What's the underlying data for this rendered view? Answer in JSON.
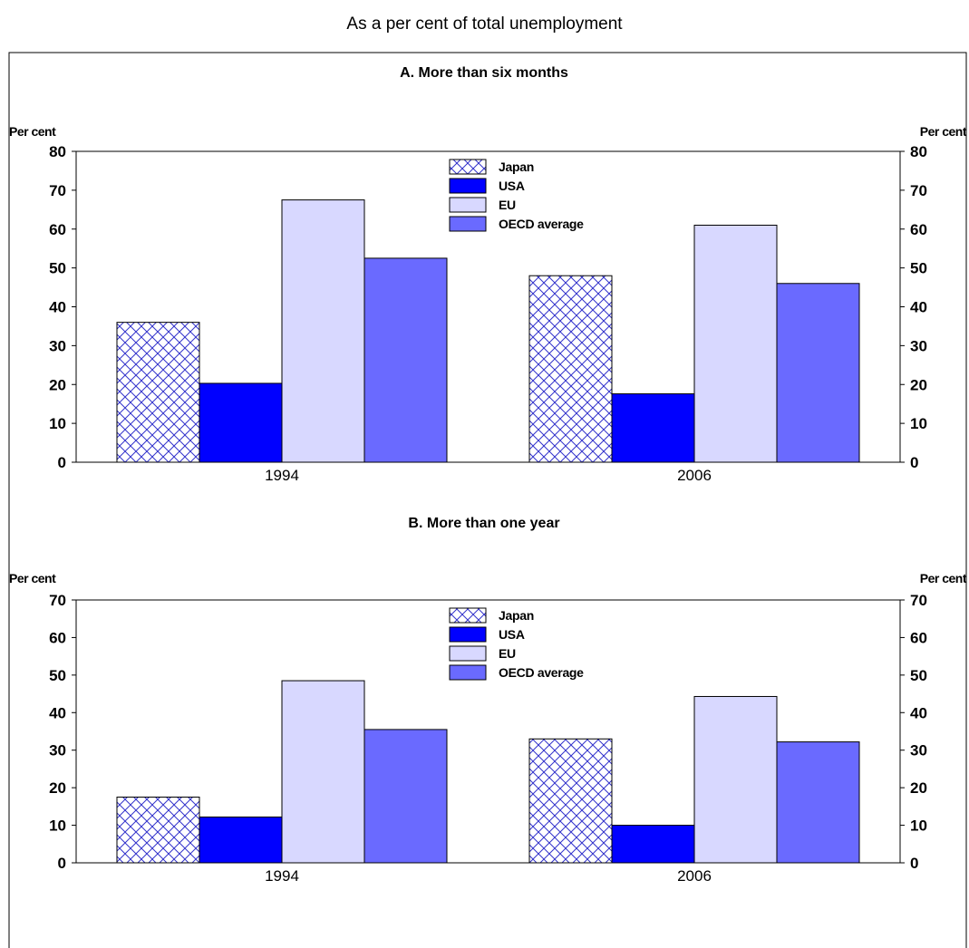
{
  "figure": {
    "subtitle": "As a per cent of total unemployment"
  },
  "colors": {
    "japan_hatch": "#3333cc",
    "usa": "#0000ff",
    "eu": "#d8d8ff",
    "oecd": "#6a6aff",
    "border": "#000000"
  },
  "chart_data": [
    {
      "type": "bar",
      "title": "A. More than six months",
      "ylabel_left": "Per cent",
      "ylabel_right": "Per cent",
      "categories": [
        "1994",
        "2006"
      ],
      "ylim": [
        0,
        80
      ],
      "yticks": [
        0,
        10,
        20,
        30,
        40,
        50,
        60,
        70,
        80
      ],
      "legend_position": "top-center",
      "series": [
        {
          "name": "Japan",
          "values": [
            36,
            48
          ],
          "style": "hatch"
        },
        {
          "name": "USA",
          "values": [
            20.3,
            17.6
          ]
        },
        {
          "name": "EU",
          "values": [
            67.5,
            61
          ]
        },
        {
          "name": "OECD average",
          "values": [
            52.5,
            46
          ]
        }
      ]
    },
    {
      "type": "bar",
      "title": "B. More than one year",
      "ylabel_left": "Per cent",
      "ylabel_right": "Per cent",
      "categories": [
        "1994",
        "2006"
      ],
      "ylim": [
        0,
        70
      ],
      "yticks": [
        0,
        10,
        20,
        30,
        40,
        50,
        60,
        70
      ],
      "legend_position": "top-center",
      "series": [
        {
          "name": "Japan",
          "values": [
            17.5,
            33
          ],
          "style": "hatch"
        },
        {
          "name": "USA",
          "values": [
            12.2,
            10
          ]
        },
        {
          "name": "EU",
          "values": [
            48.5,
            44.3
          ]
        },
        {
          "name": "OECD average",
          "values": [
            35.5,
            32.2
          ]
        }
      ]
    }
  ]
}
